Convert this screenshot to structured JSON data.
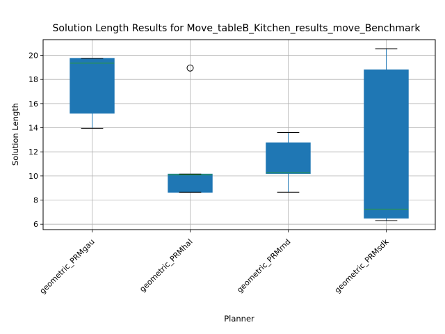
{
  "chart_data": {
    "type": "boxplot",
    "title": "Solution Length Results for Move_tableB_Kitchen_results_move_Benchmark",
    "xlabel": "Planner",
    "ylabel": "Solution Length",
    "ylim": [
      5.55,
      21.3
    ],
    "yticks": [
      6,
      8,
      10,
      12,
      14,
      16,
      18,
      20
    ],
    "grid": true,
    "box_color": "#1f77b4",
    "median_color": "#2ca02c",
    "whisker_color": "#1f77b4",
    "cap_color": "#000000",
    "categories": [
      "geometric_PRMgau",
      "geometric_PRMhal",
      "geometric_PRMrnd",
      "geometric_PRMsdk"
    ],
    "boxes": [
      {
        "planner": "geometric_PRMgau",
        "whislo": 13.95,
        "q1": 15.2,
        "median": 19.35,
        "q3": 19.75,
        "whishi": 19.75,
        "fliers": []
      },
      {
        "planner": "geometric_PRMhal",
        "whislo": 8.65,
        "q1": 8.65,
        "median": 10.1,
        "q3": 10.15,
        "whishi": 10.15,
        "fliers": [
          18.95
        ]
      },
      {
        "planner": "geometric_PRMrnd",
        "whislo": 8.65,
        "q1": 10.2,
        "median": 10.25,
        "q3": 12.75,
        "whishi": 13.6,
        "fliers": []
      },
      {
        "planner": "geometric_PRMsdk",
        "whislo": 6.3,
        "q1": 6.5,
        "median": 7.25,
        "q3": 18.8,
        "whishi": 20.55,
        "fliers": []
      }
    ]
  }
}
